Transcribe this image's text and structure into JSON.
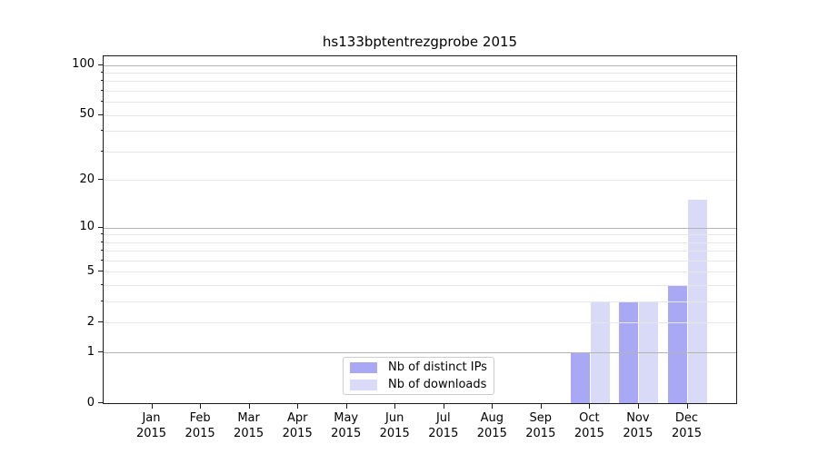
{
  "chart_data": {
    "type": "bar",
    "title": "hs133bptentrezgprobe 2015",
    "year": "2015",
    "categories": [
      "Jan",
      "Feb",
      "Mar",
      "Apr",
      "May",
      "Jun",
      "Jul",
      "Aug",
      "Sep",
      "Oct",
      "Nov",
      "Dec"
    ],
    "series": [
      {
        "name": "Nb of distinct IPs",
        "color": "#a8a8f5",
        "values": [
          0,
          0,
          0,
          0,
          0,
          0,
          0,
          0,
          0,
          1,
          3,
          4
        ]
      },
      {
        "name": "Nb of downloads",
        "color": "#d9d9f8",
        "values": [
          0,
          0,
          0,
          0,
          0,
          0,
          0,
          0,
          0,
          3,
          3,
          15
        ]
      }
    ],
    "xlabel": "",
    "ylabel": "",
    "yscale": "log1p",
    "ylim": [
      0,
      113
    ],
    "yticks": [
      0,
      1,
      2,
      5,
      10,
      20,
      50,
      100
    ],
    "grid": {
      "major_values": [
        1,
        10,
        100
      ],
      "minor_values": [
        2,
        3,
        4,
        5,
        6,
        7,
        8,
        9,
        20,
        30,
        40,
        50,
        60,
        70,
        80,
        90
      ],
      "major_color": "#b4b4b4",
      "minor_color": "#e7e7e7"
    },
    "legend": {
      "position": "lower center",
      "items": [
        "Nb of distinct IPs",
        "Nb of downloads"
      ]
    }
  }
}
